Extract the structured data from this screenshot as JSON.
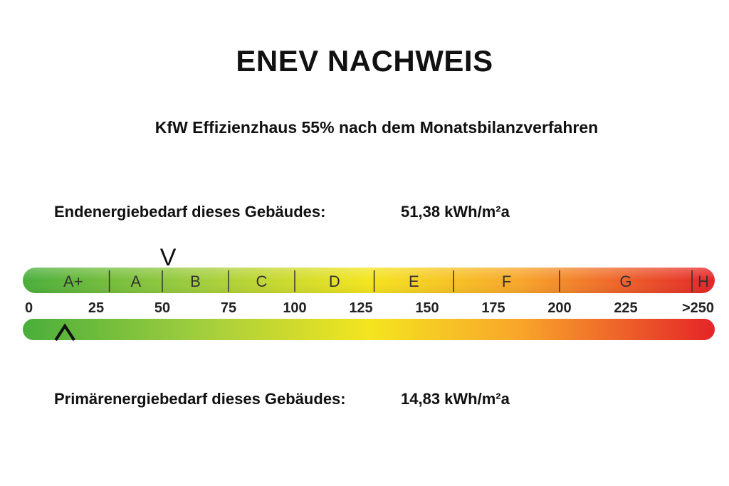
{
  "title": "ENEV NACHWEIS",
  "subtitle": "KfW Effizienzhaus 55% nach dem Monatsbilanzverfahren",
  "endenergie": {
    "label": "Endenergiebedarf dieses Gebäudes:",
    "value": "51,38 kWh/m²a",
    "numeric": 51.38
  },
  "primaerenergie": {
    "label": "Primärenergiebedarf dieses Gebäudes:",
    "value": "14,83 kWh/m²a",
    "numeric": 14.83
  },
  "scale": {
    "min": 0,
    "max": 250,
    "classes": [
      {
        "label": "A+",
        "from": 0,
        "to": 30
      },
      {
        "label": "A",
        "from": 30,
        "to": 50
      },
      {
        "label": "B",
        "from": 50,
        "to": 75
      },
      {
        "label": "C",
        "from": 75,
        "to": 100
      },
      {
        "label": "D",
        "from": 100,
        "to": 130
      },
      {
        "label": "E",
        "from": 130,
        "to": 160
      },
      {
        "label": "F",
        "from": 160,
        "to": 200
      },
      {
        "label": "G",
        "from": 200,
        "to": 250
      },
      {
        "label": "H",
        "from": 250,
        "to": 275
      }
    ],
    "ticks": [
      {
        "value": 0,
        "label": "0"
      },
      {
        "value": 25,
        "label": "25"
      },
      {
        "value": 50,
        "label": "50"
      },
      {
        "value": 75,
        "label": "75"
      },
      {
        "value": 100,
        "label": "100"
      },
      {
        "value": 125,
        "label": "125"
      },
      {
        "value": 150,
        "label": "150"
      },
      {
        "value": 175,
        "label": "175"
      },
      {
        "value": 200,
        "label": "200"
      },
      {
        "value": 225,
        "label": "225"
      },
      {
        "value": 250,
        "label": ">250"
      }
    ],
    "colors": [
      "#4daf3a",
      "#8cc63f",
      "#f3e620",
      "#f7a12b",
      "#e8262a"
    ],
    "top_marker_symbol": "V",
    "bottom_marker_symbol": "^"
  }
}
